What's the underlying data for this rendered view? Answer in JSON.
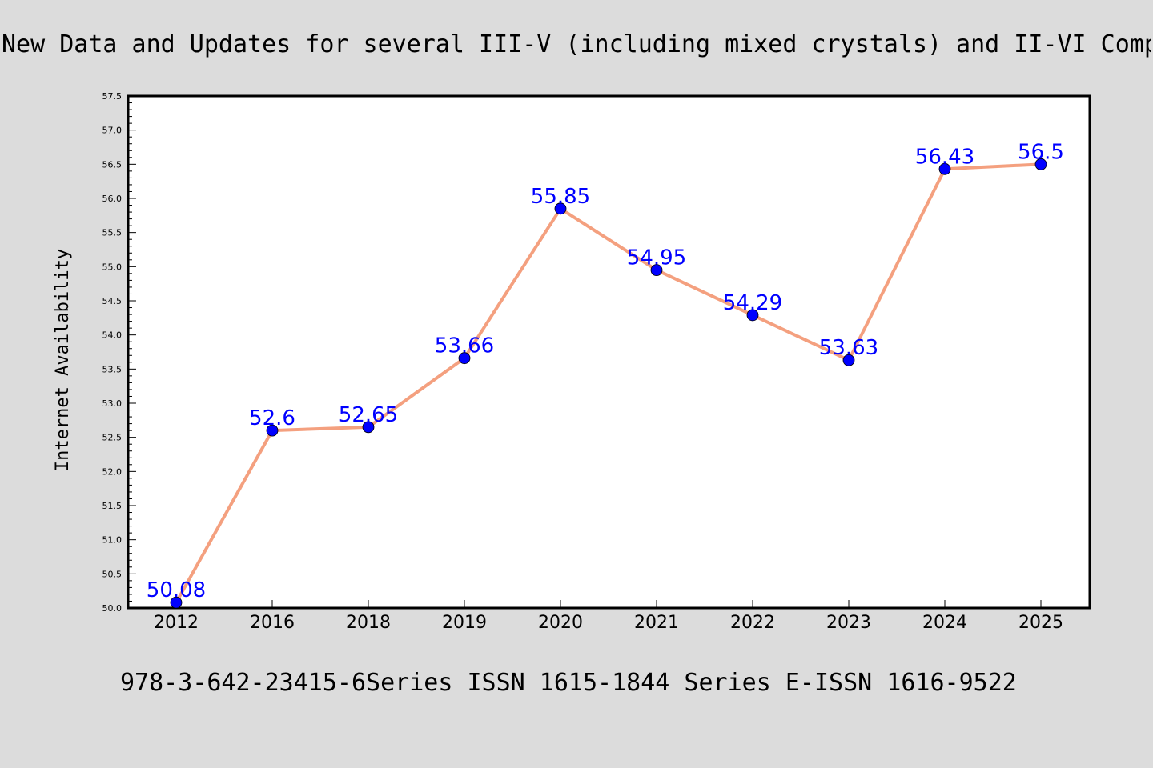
{
  "title": "New Data and Updates for several III-V (including mixed crystals) and II-VI Comp",
  "footer": "978-3-642-23415-6Series ISSN 1615-1844 Series E-ISSN 1616-9522",
  "colors": {
    "background": "#dcdcdc",
    "plot_bg": "#ffffff",
    "line": "#f4a07f",
    "marker": "#0000ff",
    "label": "#0000ff"
  },
  "chart_data": {
    "type": "line",
    "title": "New Data and Updates for several III-V (including mixed crystals) and II-VI Comp",
    "xlabel": "",
    "ylabel": "Internet Availability",
    "categories": [
      "2012",
      "2016",
      "2018",
      "2019",
      "2020",
      "2021",
      "2022",
      "2023",
      "2024",
      "2025"
    ],
    "values": [
      50.08,
      52.6,
      52.65,
      53.66,
      55.85,
      54.95,
      54.29,
      53.63,
      56.43,
      56.5
    ],
    "data_labels": [
      "50.08",
      "52.6",
      "52.65",
      "53.66",
      "55.85",
      "54.95",
      "54.29",
      "53.63",
      "56.43",
      "56.5"
    ],
    "ylim": [
      50.0,
      57.5
    ],
    "yticks": [
      "50.0",
      "50.5",
      "51.0",
      "51.5",
      "52.0",
      "52.5",
      "53.0",
      "53.5",
      "54.0",
      "54.5",
      "55.0",
      "55.5",
      "56.0",
      "56.5",
      "57.0",
      "57.5"
    ],
    "grid": false,
    "legend": "none"
  }
}
